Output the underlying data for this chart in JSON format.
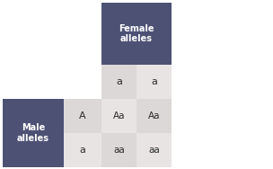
{
  "fig_width": 3.04,
  "fig_height": 1.88,
  "dpi": 100,
  "bg_color": "#ffffff",
  "header_color": "#4d5275",
  "cell_color_1": "#ddd8d8",
  "cell_color_2": "#e8e4e4",
  "text_color_white": "#ffffff",
  "text_color_dark": "#2b2b2b",
  "female_label": "Female\nalleles",
  "male_label": "Male\nalleles",
  "female_alleles": [
    "a",
    "a"
  ],
  "male_alleles": [
    "A",
    "a"
  ],
  "cells": [
    [
      "Aa",
      "Aa"
    ],
    [
      "aa",
      "aa"
    ]
  ],
  "cell_fontsize": 7.5,
  "header_fontsize": 7.0,
  "allele_fontsize": 8.0
}
